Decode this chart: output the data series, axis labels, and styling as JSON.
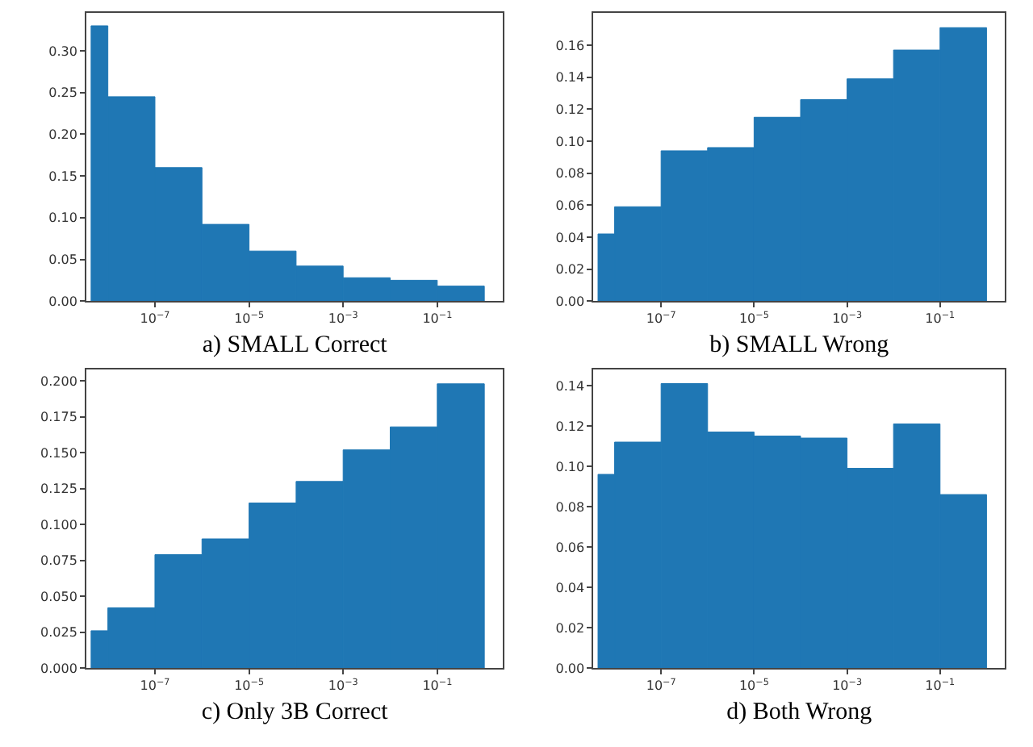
{
  "chart_data": [
    {
      "type": "histogram",
      "xlabel": "a) SMALL Correct",
      "color": "#1f77b4",
      "log": "x",
      "bins": [
        4.4e-09,
        1e-08,
        1e-07,
        1e-06,
        1e-05,
        0.0001,
        0.001,
        0.01,
        0.1,
        1
      ],
      "values": [
        0.33,
        0.245,
        0.16,
        0.092,
        0.06,
        0.042,
        0.028,
        0.025,
        0.018
      ],
      "xlim": [
        3.5e-09,
        2.5
      ],
      "xticks": [
        {
          "value": 1e-07,
          "label": "10$^{−7}$"
        },
        {
          "value": 1e-05,
          "label": "10$^{−5}$"
        },
        {
          "value": 0.001,
          "label": "10$^{−3}$"
        },
        {
          "value": 0.1,
          "label": "10$^{−1}$"
        }
      ],
      "ylim": [
        0,
        0.345
      ],
      "yticks": [
        {
          "value": 0,
          "label": "0.00"
        },
        {
          "value": 0.05,
          "label": "0.05"
        },
        {
          "value": 0.1,
          "label": "0.10"
        },
        {
          "value": 0.15,
          "label": "0.15"
        },
        {
          "value": 0.2,
          "label": "0.20"
        },
        {
          "value": 0.25,
          "label": "0.25"
        },
        {
          "value": 0.3,
          "label": "0.30"
        }
      ]
    },
    {
      "type": "histogram",
      "xlabel": "b) SMALL Wrong",
      "color": "#1f77b4",
      "log": "x",
      "bins": [
        4.4e-09,
        1e-08,
        1e-07,
        1e-06,
        1e-05,
        0.0001,
        0.001,
        0.01,
        0.1,
        1
      ],
      "values": [
        0.042,
        0.059,
        0.094,
        0.096,
        0.115,
        0.126,
        0.139,
        0.157,
        0.171
      ],
      "xlim": [
        3.5e-09,
        2.5
      ],
      "xticks": [
        {
          "value": 1e-07,
          "label": "10$^{−7}$"
        },
        {
          "value": 1e-05,
          "label": "10$^{−5}$"
        },
        {
          "value": 0.001,
          "label": "10$^{−3}$"
        },
        {
          "value": 0.1,
          "label": "10$^{−1}$"
        }
      ],
      "ylim": [
        0,
        0.18
      ],
      "yticks": [
        {
          "value": 0,
          "label": "0.00"
        },
        {
          "value": 0.02,
          "label": "0.02"
        },
        {
          "value": 0.04,
          "label": "0.04"
        },
        {
          "value": 0.06,
          "label": "0.06"
        },
        {
          "value": 0.08,
          "label": "0.08"
        },
        {
          "value": 0.1,
          "label": "0.10"
        },
        {
          "value": 0.12,
          "label": "0.12"
        },
        {
          "value": 0.14,
          "label": "0.14"
        },
        {
          "value": 0.16,
          "label": "0.16"
        }
      ]
    },
    {
      "type": "histogram",
      "xlabel": "c) Only 3B Correct",
      "color": "#1f77b4",
      "log": "x",
      "bins": [
        4.4e-09,
        1e-08,
        1e-07,
        1e-06,
        1e-05,
        0.0001,
        0.001,
        0.01,
        0.1,
        1
      ],
      "values": [
        0.026,
        0.042,
        0.079,
        0.09,
        0.115,
        0.13,
        0.152,
        0.168,
        0.198
      ],
      "xlim": [
        3.5e-09,
        2.5
      ],
      "xticks": [
        {
          "value": 1e-07,
          "label": "10$^{−7}$"
        },
        {
          "value": 1e-05,
          "label": "10$^{−5}$"
        },
        {
          "value": 0.001,
          "label": "10$^{−3}$"
        },
        {
          "value": 0.1,
          "label": "10$^{−1}$"
        }
      ],
      "ylim": [
        0,
        0.208
      ],
      "yticks": [
        {
          "value": 0,
          "label": "0.000"
        },
        {
          "value": 0.025,
          "label": "0.025"
        },
        {
          "value": 0.05,
          "label": "0.050"
        },
        {
          "value": 0.075,
          "label": "0.075"
        },
        {
          "value": 0.1,
          "label": "0.100"
        },
        {
          "value": 0.125,
          "label": "0.125"
        },
        {
          "value": 0.15,
          "label": "0.150"
        },
        {
          "value": 0.175,
          "label": "0.175"
        },
        {
          "value": 0.2,
          "label": "0.200"
        }
      ]
    },
    {
      "type": "histogram",
      "xlabel": "d) Both Wrong",
      "color": "#1f77b4",
      "log": "x",
      "bins": [
        4.4e-09,
        1e-08,
        1e-07,
        1e-06,
        1e-05,
        0.0001,
        0.001,
        0.01,
        0.1,
        1
      ],
      "values": [
        0.096,
        0.112,
        0.141,
        0.117,
        0.115,
        0.114,
        0.099,
        0.121,
        0.086
      ],
      "xlim": [
        3.5e-09,
        2.5
      ],
      "xticks": [
        {
          "value": 1e-07,
          "label": "10$^{−7}$"
        },
        {
          "value": 1e-05,
          "label": "10$^{−5}$"
        },
        {
          "value": 0.001,
          "label": "10$^{−3}$"
        },
        {
          "value": 0.1,
          "label": "10$^{−1}$"
        }
      ],
      "ylim": [
        0,
        0.148
      ],
      "yticks": [
        {
          "value": 0,
          "label": "0.00"
        },
        {
          "value": 0.02,
          "label": "0.02"
        },
        {
          "value": 0.04,
          "label": "0.04"
        },
        {
          "value": 0.06,
          "label": "0.06"
        },
        {
          "value": 0.08,
          "label": "0.08"
        },
        {
          "value": 0.1,
          "label": "0.10"
        },
        {
          "value": 0.12,
          "label": "0.12"
        },
        {
          "value": 0.14,
          "label": "0.14"
        }
      ]
    }
  ]
}
